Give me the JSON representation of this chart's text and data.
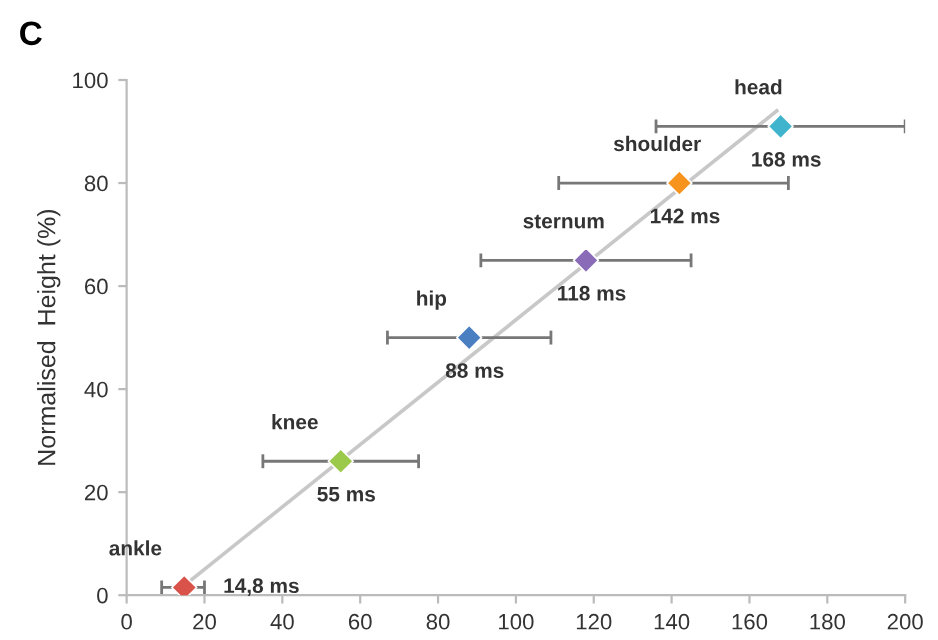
{
  "chart_data": {
    "type": "scatter",
    "title": "C",
    "ylabel": "Normalised  Height (%)",
    "xlim": [
      0,
      200
    ],
    "ylim": [
      0,
      100
    ],
    "xticks": [
      0,
      20,
      40,
      60,
      80,
      100,
      120,
      140,
      160,
      180,
      200
    ],
    "yticks": [
      0,
      20,
      40,
      60,
      80,
      100
    ],
    "grid": false,
    "marker": "diamond",
    "series": [
      {
        "type": "line",
        "x": [
          15,
          167
        ],
        "values": [
          2,
          94
        ],
        "color": "#c8c8c8",
        "marker": "none"
      },
      {
        "name": "ankle",
        "x": [
          14.8
        ],
        "values": [
          1.5
        ],
        "color": "#d9534a",
        "xerrors": [
          [
            9,
            20
          ]
        ]
      },
      {
        "name": "knee",
        "x": [
          55
        ],
        "values": [
          26
        ],
        "color": "#9bc94a",
        "xerrors": [
          [
            35,
            75
          ]
        ]
      },
      {
        "name": "hip",
        "x": [
          88
        ],
        "values": [
          50
        ],
        "color": "#4a7fc1",
        "xerrors": [
          [
            67,
            109
          ]
        ]
      },
      {
        "name": "sternum",
        "x": [
          118
        ],
        "values": [
          65
        ],
        "color": "#8a6bb8",
        "xerrors": [
          [
            91,
            145
          ]
        ]
      },
      {
        "name": "shoulder",
        "x": [
          142
        ],
        "values": [
          80
        ],
        "color": "#f7941d",
        "xerrors": [
          [
            111,
            170
          ]
        ]
      },
      {
        "name": "head",
        "x": [
          168
        ],
        "values": [
          91
        ],
        "color": "#3fb4cc",
        "xerrors": [
          [
            136,
            200
          ]
        ]
      }
    ],
    "annotations": [
      {
        "text": "14,8 ms",
        "x": 14.8,
        "y": 1.5
      },
      {
        "text": "55 ms",
        "x": 55,
        "y": 26
      },
      {
        "text": "88 ms",
        "x": 88,
        "y": 50
      },
      {
        "text": "118 ms",
        "x": 118,
        "y": 65
      },
      {
        "text": "142 ms",
        "x": 142,
        "y": 80
      },
      {
        "text": "168 ms",
        "x": 168,
        "y": 91
      }
    ]
  }
}
